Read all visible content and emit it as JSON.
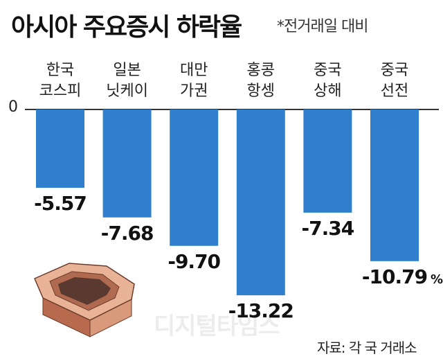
{
  "title": "아시아 주요증시 하락율",
  "note": "*전거래일 대비",
  "zero_label": "0",
  "source": "자료: 각 국 거래소",
  "watermark": "디지털타임스",
  "colors": {
    "bar": "#2f7fcc",
    "text": "#111111",
    "pot": "#c98466"
  },
  "icon": "hexagonal-planter-icon",
  "chart_data": {
    "type": "bar",
    "title": "아시아 주요증시 하락율",
    "categories": [
      [
        "한국",
        "코스피"
      ],
      [
        "일본",
        "닛케이"
      ],
      [
        "대만",
        "가권"
      ],
      [
        "홍콩",
        "항셍"
      ],
      [
        "중국",
        "상해"
      ],
      [
        "중국",
        "선전"
      ]
    ],
    "values": [
      -5.57,
      -7.68,
      -9.7,
      -13.22,
      -7.34,
      -10.79
    ],
    "value_labels": [
      "-5.57",
      "-7.68",
      "-9.70",
      "-13.22",
      "-7.34",
      "-10.79"
    ],
    "unit": "%",
    "ylim": [
      -14,
      0
    ],
    "grid": false,
    "legend": "none"
  }
}
